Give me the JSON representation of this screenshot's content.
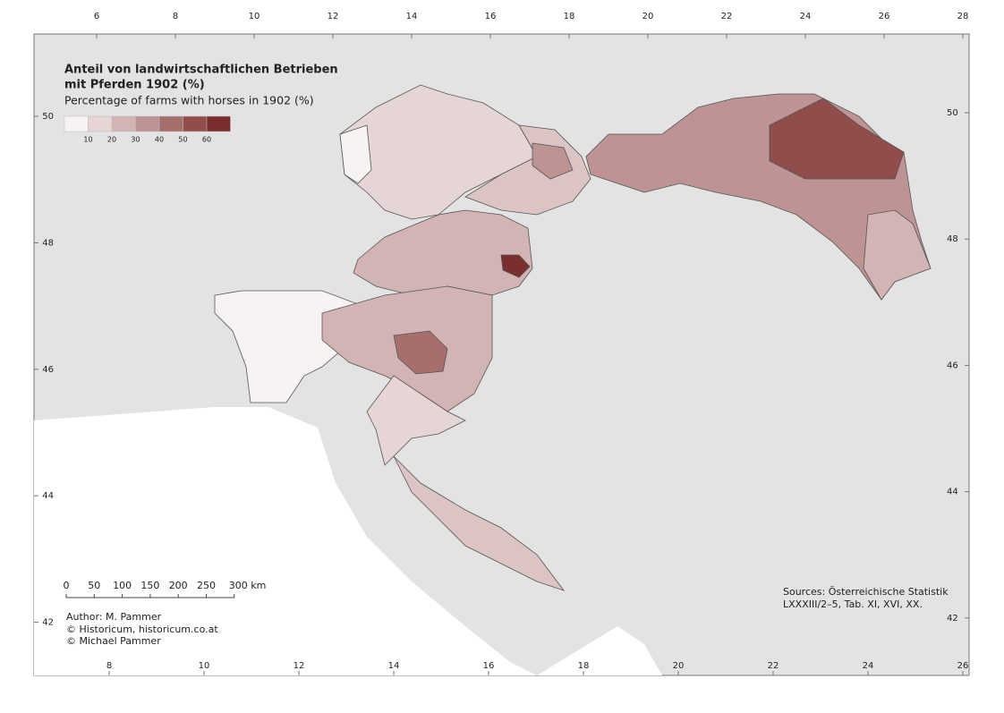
{
  "title": {
    "line1": "Anteil von landwirtschaftlichen Betrieben",
    "line2": "mit Pferden 1902 (%)",
    "subtitle": "Percentage of farms with horses in 1902 (%)"
  },
  "legend": {
    "labels": [
      10,
      20,
      30,
      40,
      50,
      60
    ],
    "colors": [
      "#f7f3f3",
      "#e6d5d5",
      "#d2b4b4",
      "#bd9393",
      "#a76e6e",
      "#914c4c",
      "#7a2e2e"
    ]
  },
  "axes": {
    "top": [
      6,
      8,
      10,
      12,
      14,
      16,
      18,
      20,
      22,
      24,
      26,
      28
    ],
    "bottom": [
      8,
      10,
      12,
      14,
      16,
      18,
      20,
      22,
      24,
      26
    ],
    "left": [
      50,
      48,
      46,
      44,
      42
    ],
    "right": [
      50,
      48,
      46,
      44,
      42
    ]
  },
  "scale_bar": {
    "labels": [
      "0",
      "50",
      "100",
      "150",
      "200",
      "250",
      "300 km"
    ]
  },
  "credits": [
    "Author: M. Pammer",
    "© Historicum, historicum.co.at",
    "© Michael Pammer"
  ],
  "sources": [
    "Sources: Österreichische Statistik",
    "LXXXIII/2–5, Tab. XI, XVI, XX."
  ]
}
